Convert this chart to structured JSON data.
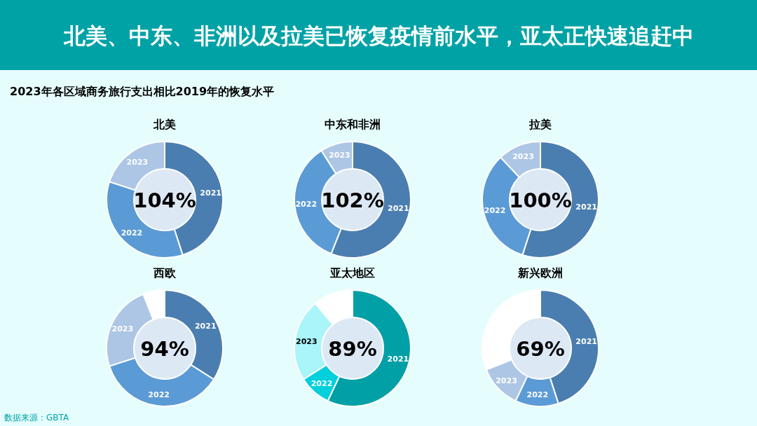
{
  "chart_data": [
    {
      "type": "other",
      "title": "北美、中东、非洲以及拉美已恢复疫情前水平，亚太正快速追赶中",
      "subtitle": "2023年各区域商务旅行支出相比2019年的恢复水平",
      "annotations": [
        "数据来源：GBTA"
      ]
    },
    {
      "type": "donut",
      "title": "北美",
      "categories": [
        "2021",
        "2022",
        "2023"
      ],
      "values": [
        45,
        35,
        20
      ],
      "colors": [
        "#4a7eb0",
        "#5b9bd5",
        "#adc6e5"
      ],
      "annotations": [
        "104%"
      ]
    },
    {
      "type": "donut",
      "title": "中东和非洲",
      "categories": [
        "2021",
        "2022",
        "2023"
      ],
      "values": [
        56,
        35,
        9
      ],
      "colors": [
        "#4a7eb0",
        "#5b9bd5",
        "#adc6e5"
      ],
      "annotations": [
        "102%"
      ]
    },
    {
      "type": "donut",
      "title": "拉美",
      "categories": [
        "2021",
        "2022",
        "2023"
      ],
      "values": [
        55,
        33,
        12
      ],
      "colors": [
        "#4a7eb0",
        "#5b9bd5",
        "#adc6e5"
      ],
      "annotations": [
        "100%"
      ]
    },
    {
      "type": "donut",
      "title": "西欧",
      "categories": [
        "2021",
        "2022",
        "2023",
        null
      ],
      "values": [
        34,
        36,
        24,
        6
      ],
      "colors": [
        "#4a7eb0",
        "#5b9bd5",
        "#adc6e5",
        "#ffffff"
      ],
      "annotations": [
        "94%"
      ]
    },
    {
      "type": "donut",
      "title": "亚太地区",
      "categories": [
        "2021",
        "2022",
        "2023",
        null
      ],
      "values": [
        57,
        9,
        23,
        11
      ],
      "colors": [
        "#00a0a6",
        "#00d0dc",
        "#aaf5fa",
        "#ffffff"
      ],
      "annotations": [
        "89%"
      ]
    },
    {
      "type": "donut",
      "title": "新兴欧洲",
      "categories": [
        "2021",
        "2022",
        "2023",
        null
      ],
      "values": [
        45,
        12,
        12,
        31
      ],
      "colors": [
        "#4a7eb0",
        "#5b9bd5",
        "#adc6e5",
        "#ffffff"
      ],
      "annotations": [
        "69%"
      ]
    }
  ]
}
